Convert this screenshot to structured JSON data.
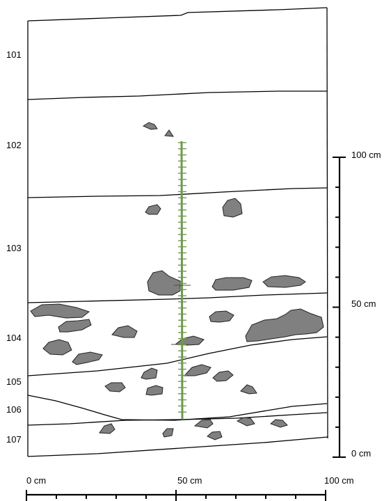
{
  "figure": {
    "layers": [
      "101",
      "102",
      "103",
      "104",
      "105",
      "106",
      "107"
    ]
  },
  "vertical_scale": {
    "labels": [
      "100 cm",
      "50 cm",
      "0 cm"
    ]
  },
  "horizontal_scale": {
    "labels": [
      "0 cm",
      "50 cm",
      "100 cm"
    ]
  },
  "colors": {
    "stone": "#808080",
    "root": "#6f9a4e",
    "line": "#000000",
    "background": "#ffffff"
  }
}
